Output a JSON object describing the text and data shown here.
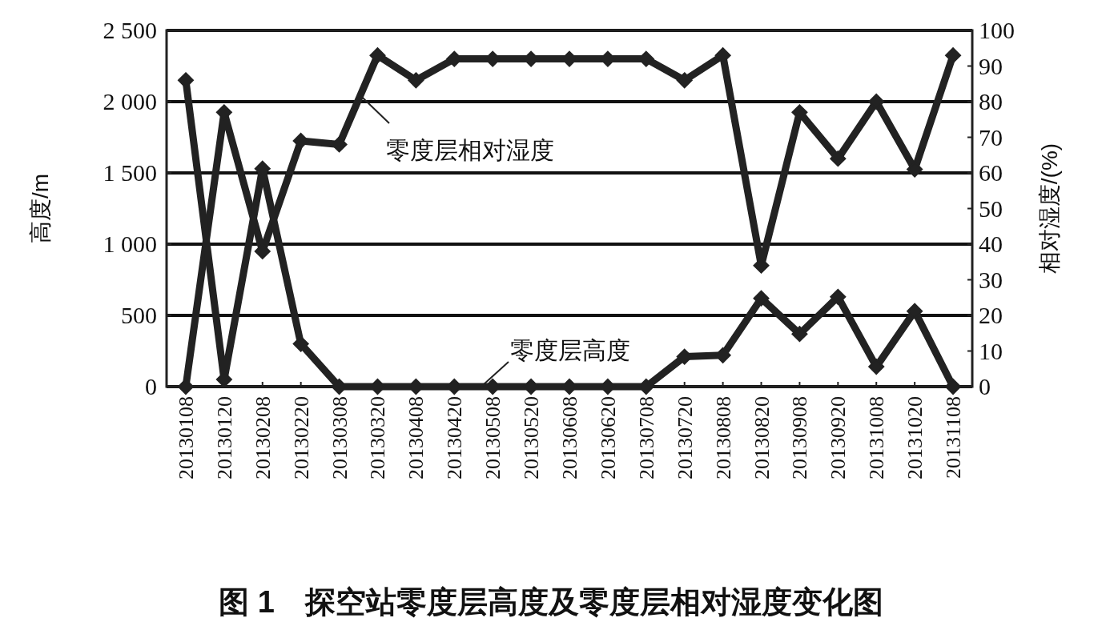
{
  "chart_data": {
    "type": "line",
    "title": "图 1　探空站零度层高度及零度层相对湿度变化图",
    "ylabel": "高度/m",
    "y2label": "相对湿度/(%)",
    "categories": [
      "20130108",
      "20130120",
      "20130208",
      "20130220",
      "20130308",
      "20130320",
      "20130408",
      "20130420",
      "20130508",
      "20130520",
      "20130608",
      "20130620",
      "20130708",
      "20130720",
      "20130808",
      "20130820",
      "20130908",
      "20130920",
      "20131008",
      "20131020",
      "20131108"
    ],
    "series": [
      {
        "name": "零度层相对湿度",
        "color": "#222222",
        "axis": "y2",
        "values": [
          0,
          77,
          38,
          69,
          68,
          93,
          86,
          92,
          92,
          92,
          92,
          92,
          92,
          86,
          93,
          34,
          77,
          64,
          80,
          61,
          93
        ]
      },
      {
        "name": "零度层高度",
        "color": "#222222",
        "values": [
          2150,
          50,
          1530,
          300,
          0,
          0,
          0,
          0,
          0,
          0,
          0,
          0,
          0,
          210,
          220,
          620,
          370,
          630,
          140,
          530,
          0
        ]
      }
    ],
    "ylim": [
      0,
      2500
    ],
    "yticks": [
      {
        "value": 0,
        "label": "0"
      },
      {
        "value": 500,
        "label": "500"
      },
      {
        "value": 1000,
        "label": "1 000"
      },
      {
        "value": 1500,
        "label": "1 500"
      },
      {
        "value": 2000,
        "label": "2 000"
      },
      {
        "value": 2500,
        "label": "2 500"
      }
    ],
    "y2lim": [
      0,
      100
    ],
    "y2ticks": [
      0,
      10,
      20,
      30,
      40,
      50,
      60,
      70,
      80,
      90,
      100
    ],
    "grid": "y",
    "legend": "top left",
    "marker": "diamond",
    "line_style": "solid"
  }
}
